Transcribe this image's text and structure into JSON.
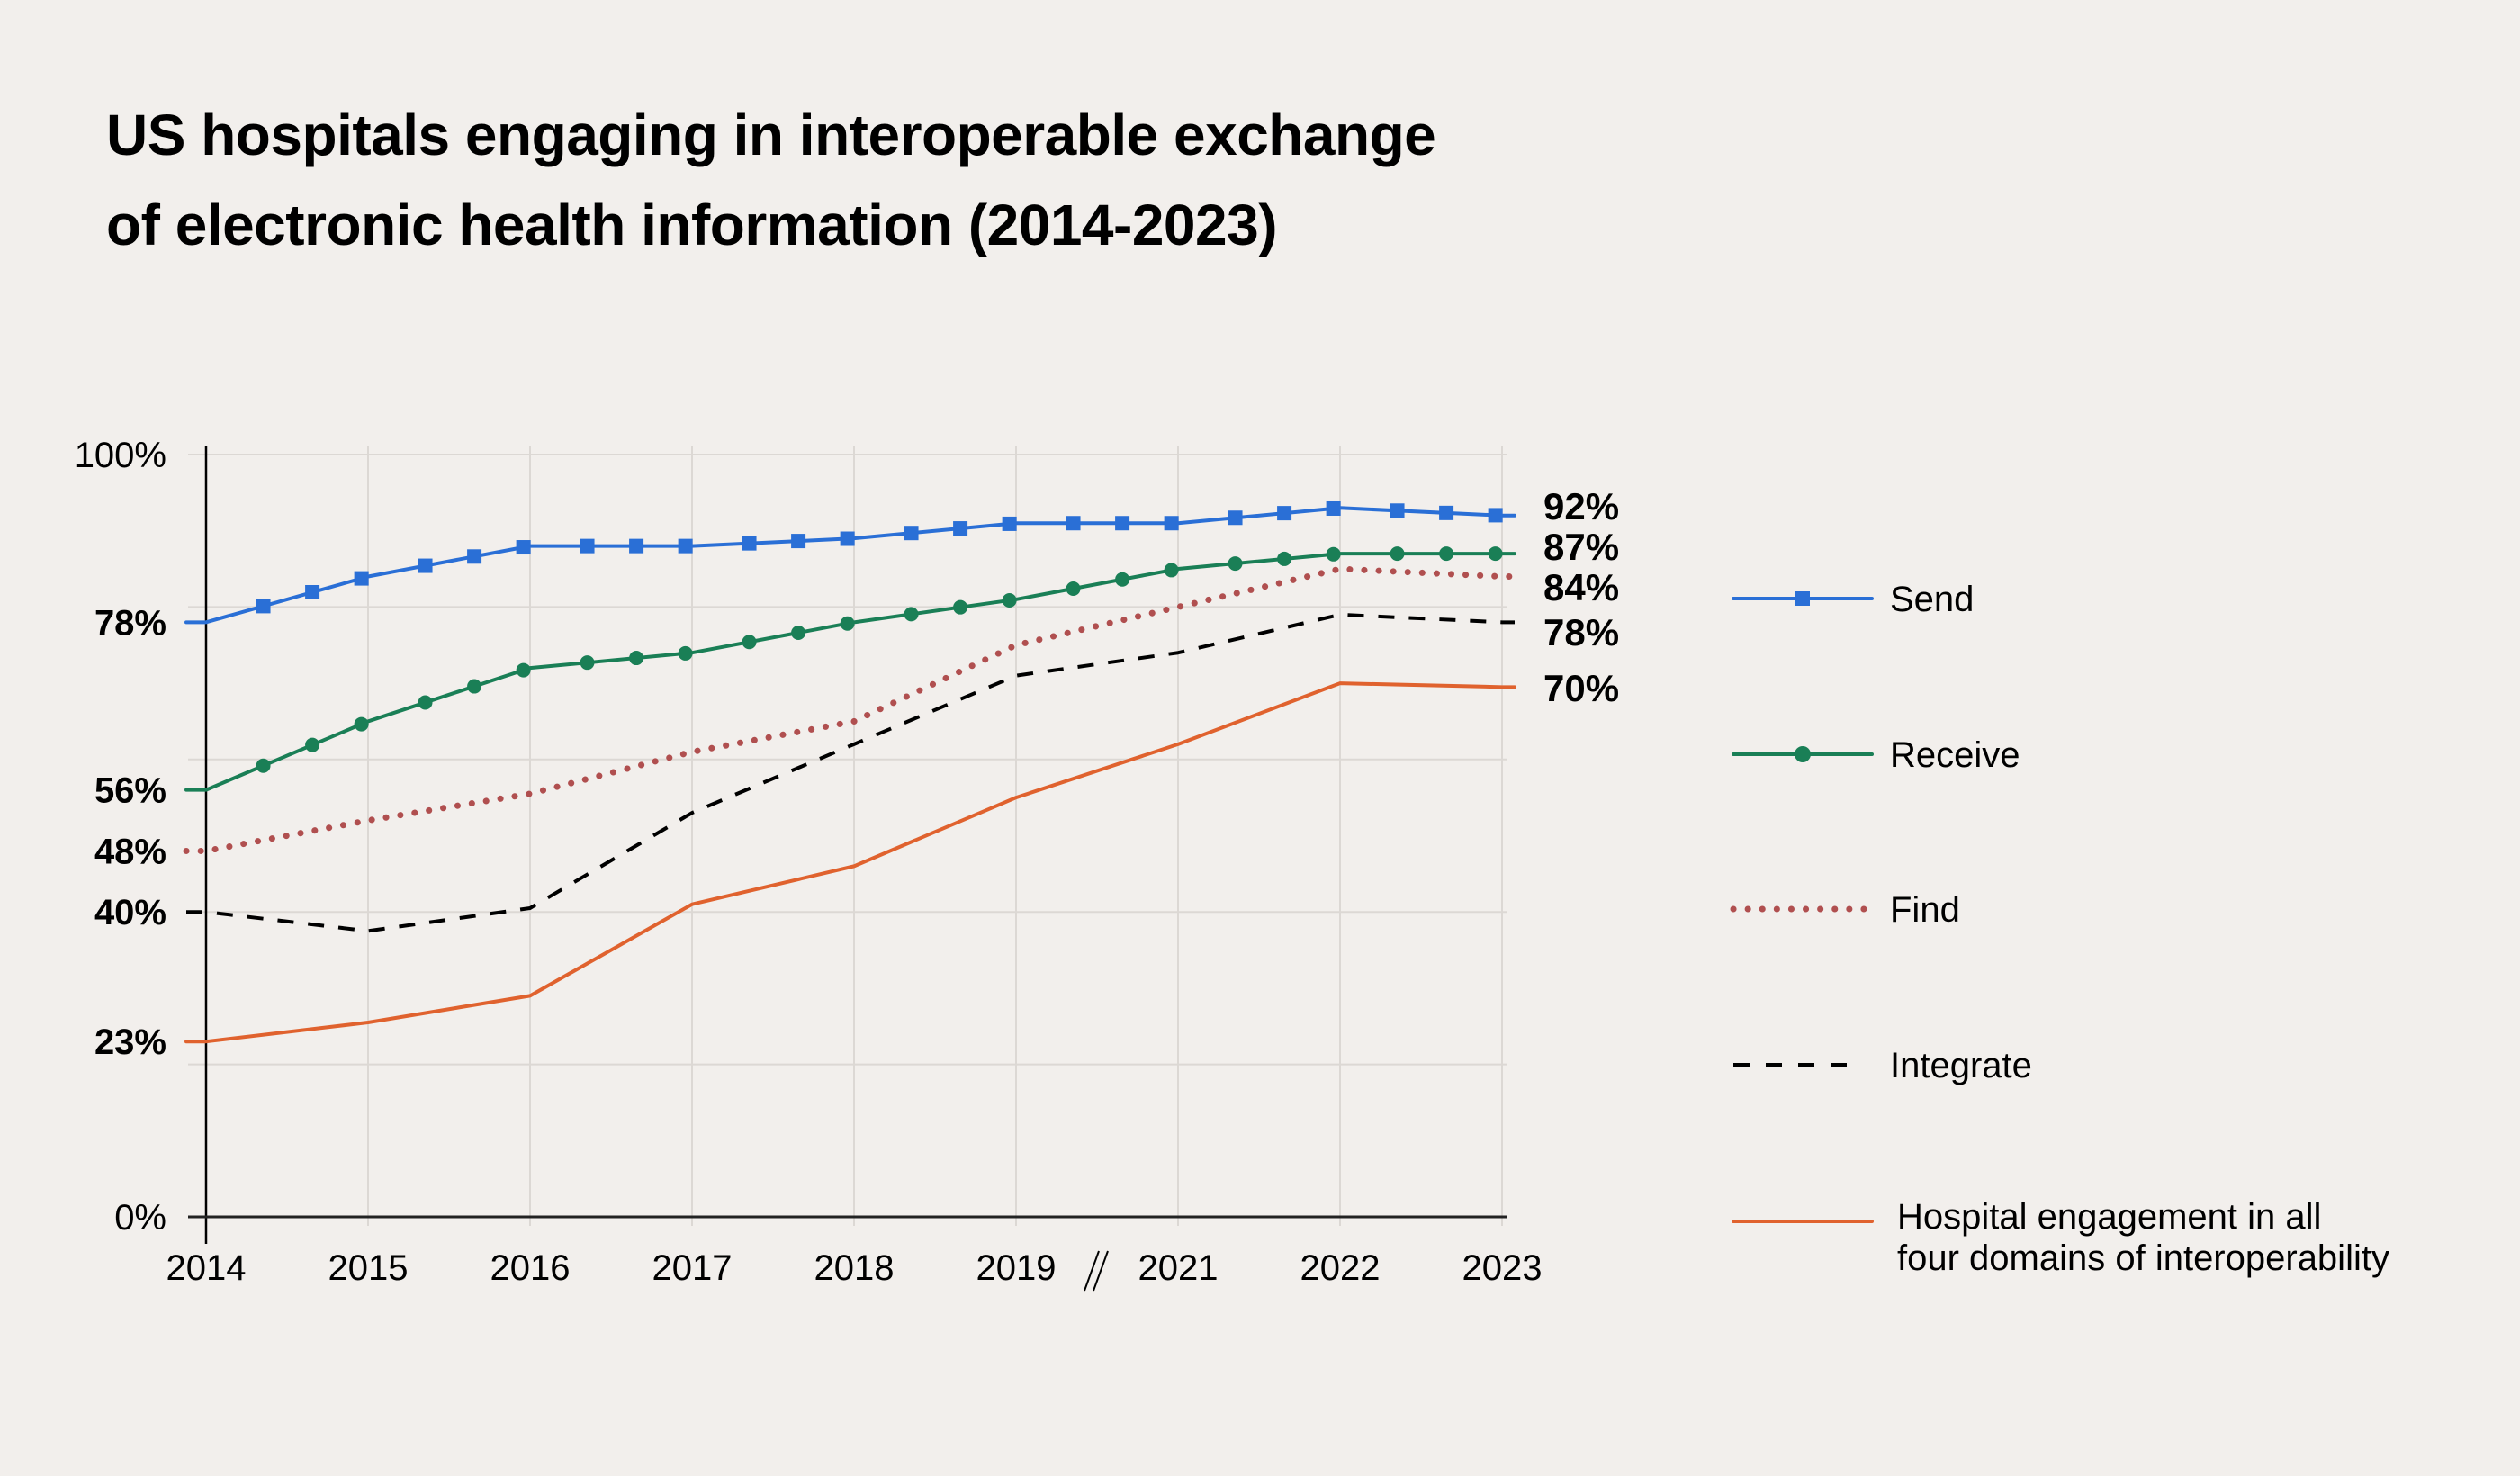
{
  "chart_data": {
    "type": "line",
    "title": "US hospitals engaging in interoperable exchange of electronic health information (2014-2023)",
    "title_lines": [
      "US hospitals engaging in interoperable exchange",
      "of electronic health information (2014-2023)"
    ],
    "xlabel": "",
    "ylabel": "",
    "categories": [
      "2014",
      "2015",
      "2016",
      "2017",
      "2018",
      "2019",
      "2021",
      "2022",
      "2023"
    ],
    "axis_break_between": [
      "2019",
      "2021"
    ],
    "ylim": [
      0,
      100
    ],
    "y_ticks": [
      {
        "value": 100,
        "label": "100%",
        "bold": false
      },
      {
        "value": 78,
        "label": "78%",
        "bold": true
      },
      {
        "value": 56,
        "label": "56%",
        "bold": true
      },
      {
        "value": 48,
        "label": "48%",
        "bold": true
      },
      {
        "value": 40,
        "label": "40%",
        "bold": true
      },
      {
        "value": 23,
        "label": "23%",
        "bold": true
      },
      {
        "value": 0,
        "label": "0%",
        "bold": false
      }
    ],
    "grid": true,
    "grid_y": [
      0,
      20,
      40,
      60,
      80,
      100
    ],
    "legend_position": "right",
    "series": [
      {
        "name": "Send",
        "color": "#2a6fd6",
        "style": "solid",
        "marker": "square",
        "values": [
          78,
          84,
          88,
          88,
          89,
          91,
          91,
          93,
          92
        ],
        "end_label": "92%"
      },
      {
        "name": "Receive",
        "color": "#1a7f56",
        "style": "solid",
        "marker": "circle",
        "values": [
          56,
          65,
          72,
          74,
          78,
          81,
          85,
          87,
          87
        ],
        "end_label": "87%"
      },
      {
        "name": "Find",
        "color": "#b04f4f",
        "style": "dotted",
        "marker": "none",
        "values": [
          48,
          52,
          55.5,
          61,
          65,
          75,
          80,
          85,
          84
        ],
        "end_label": "84%"
      },
      {
        "name": "Integrate",
        "color": "#000000",
        "style": "dashed",
        "marker": "none",
        "values": [
          40,
          37.5,
          40.5,
          53,
          62,
          71,
          74,
          79,
          78
        ],
        "end_label": "78%"
      },
      {
        "name": "Hospital engagement in all four domains of interoperability",
        "legend_lines": [
          "Hospital engagement in all",
          "four domains of interoperability"
        ],
        "color": "#e0622e",
        "style": "solid",
        "marker": "none",
        "values": [
          23,
          25.5,
          29,
          41,
          46,
          55,
          62,
          70,
          69.5
        ],
        "end_label": "70%"
      }
    ]
  }
}
